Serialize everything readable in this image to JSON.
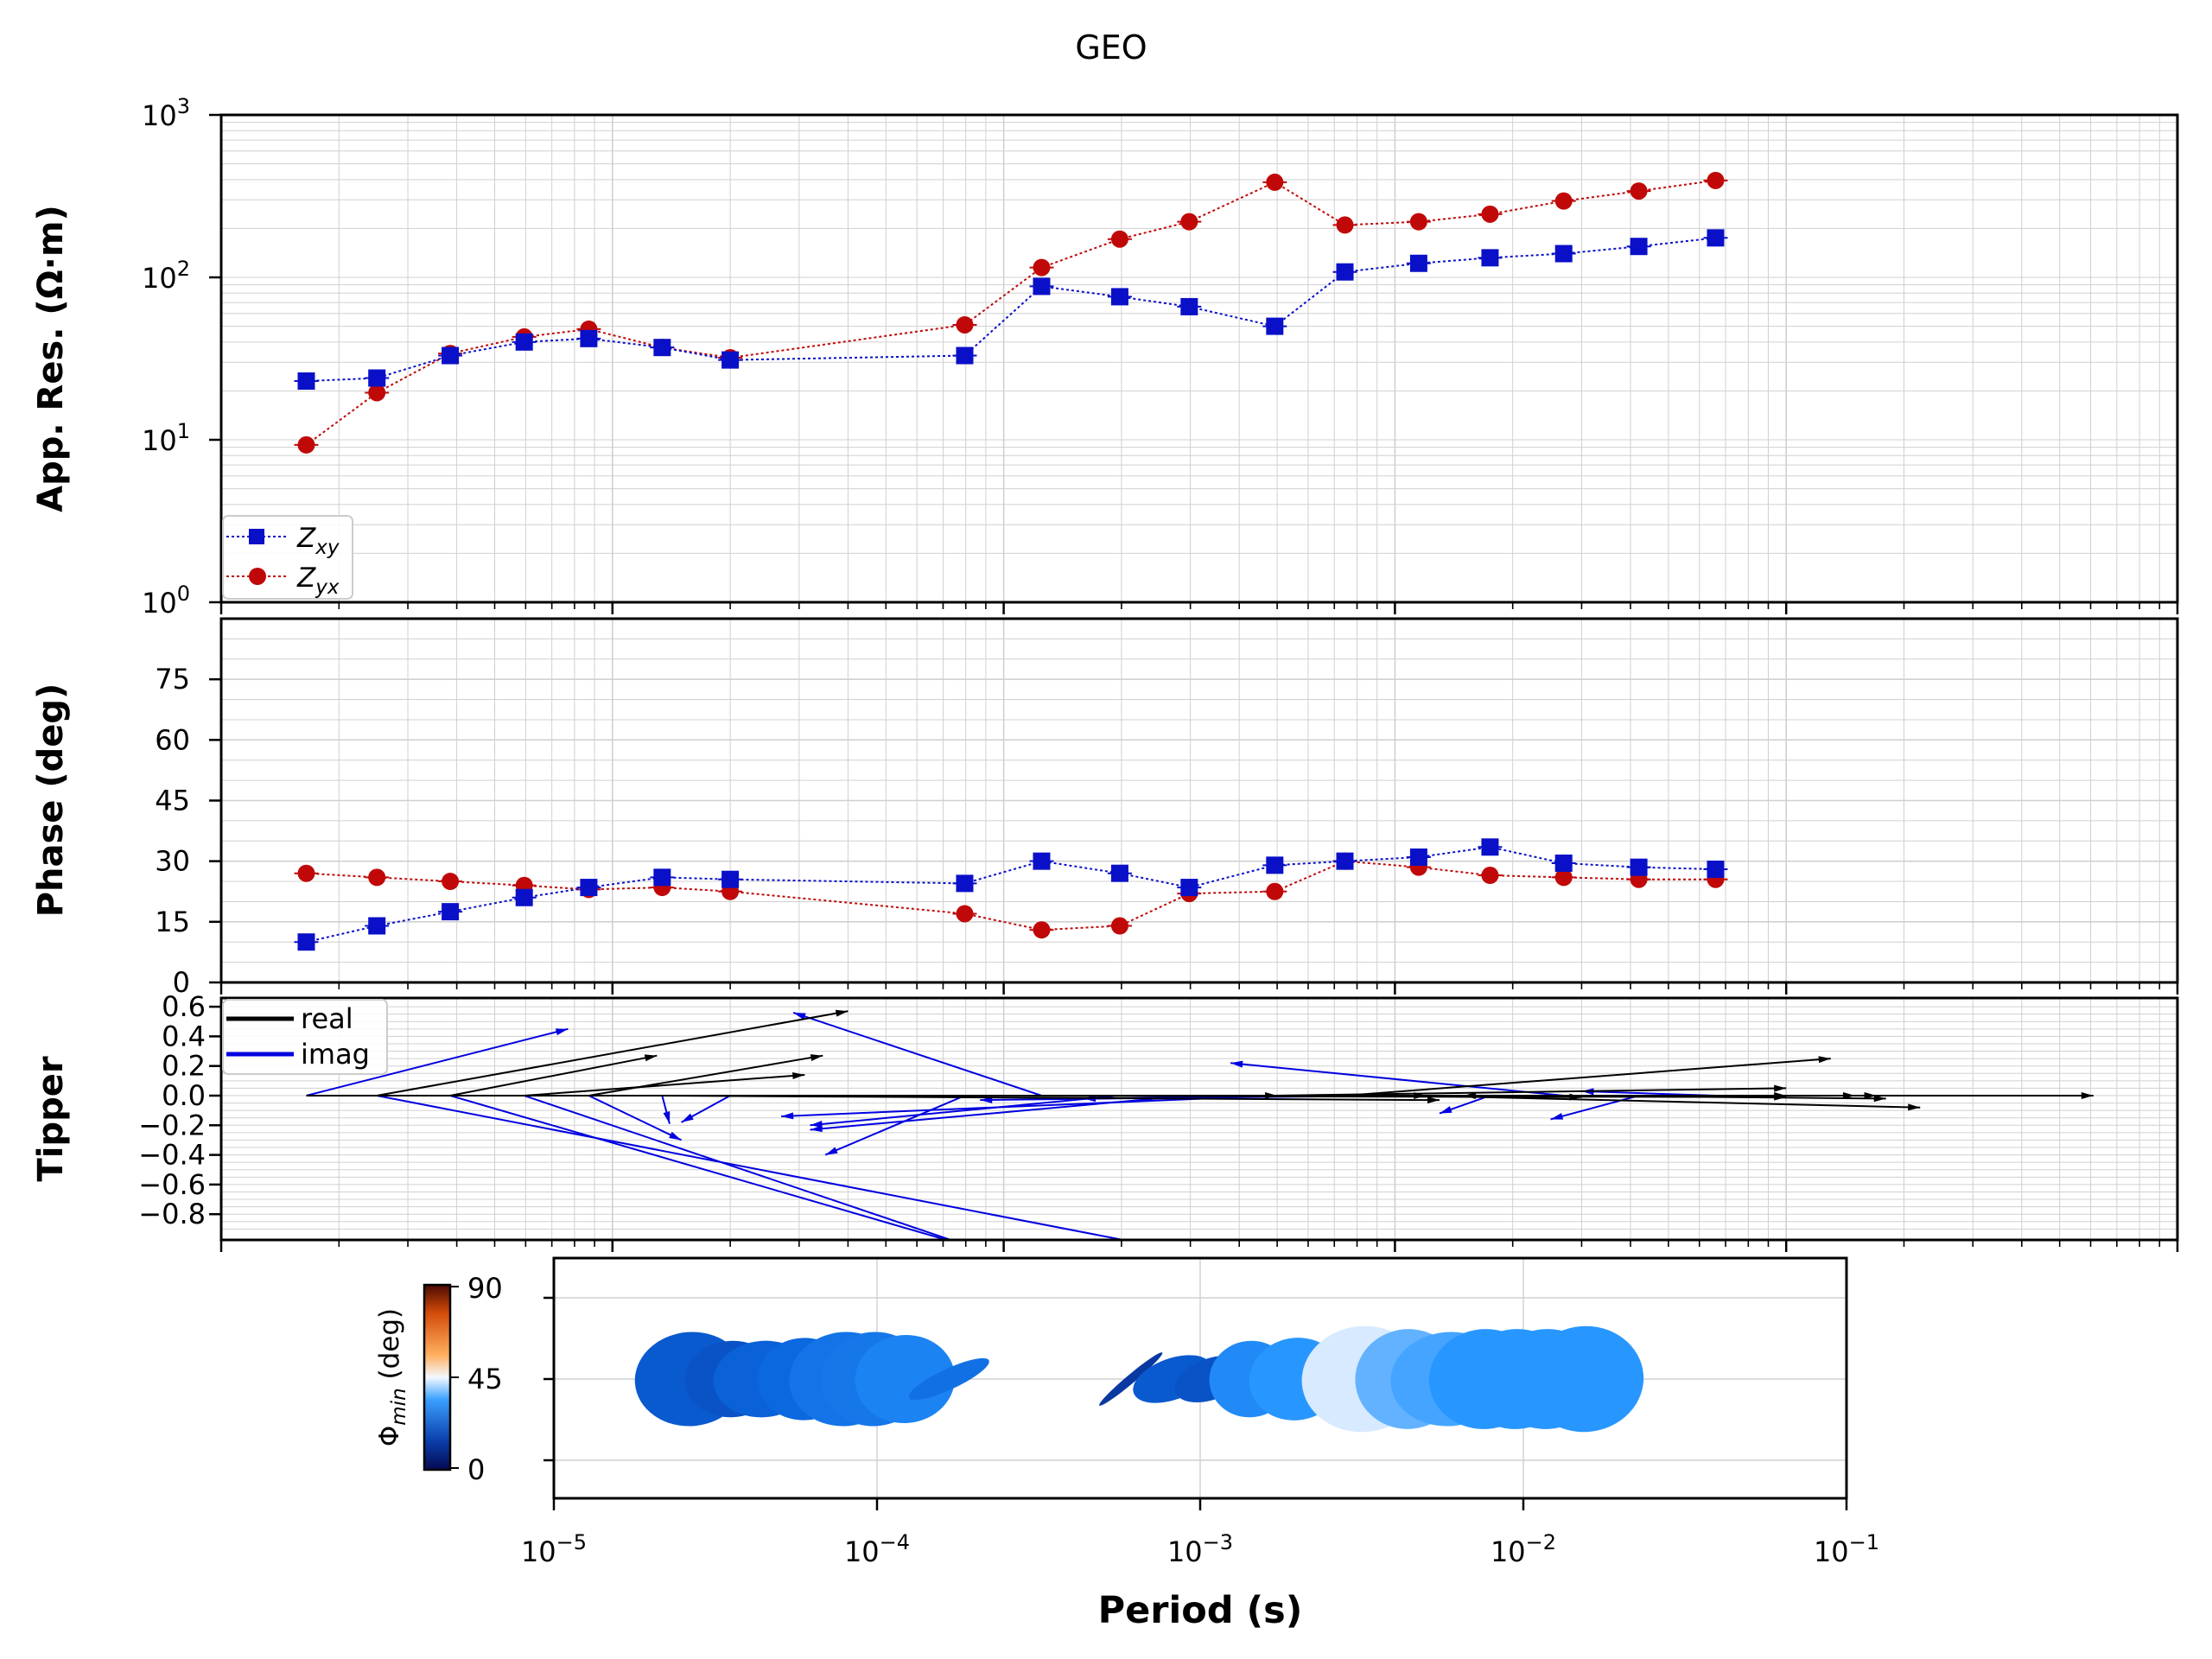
{
  "title": "GEO",
  "colors": {
    "xy": "#0a10c8",
    "yx": "#c00808",
    "real": "#000000",
    "imag": "#0000e0",
    "grid": "#d0d0d0"
  },
  "resistivity_axis": {
    "ylabel": "App. Res. (Ω·m)",
    "ticks": [
      {
        "base": "10",
        "exp": "0"
      },
      {
        "base": "10",
        "exp": "1"
      },
      {
        "base": "10",
        "exp": "2"
      },
      {
        "base": "10",
        "exp": "3"
      }
    ]
  },
  "phase_axis": {
    "ylabel": "Phase (deg)",
    "ticks": [
      "0",
      "15",
      "30",
      "45",
      "60",
      "75"
    ]
  },
  "tipper_axis": {
    "ylabel": "Tipper",
    "ticks": [
      "0.6",
      "0.4",
      "0.2",
      "0.0",
      "−0.2",
      "−0.4",
      "−0.6",
      "−0.8"
    ]
  },
  "period_axis": {
    "xlabel": "Period (s)",
    "ticks": [
      {
        "base": "10",
        "exp": "−5"
      },
      {
        "base": "10",
        "exp": "−4"
      },
      {
        "base": "10",
        "exp": "−3"
      },
      {
        "base": "10",
        "exp": "−2"
      },
      {
        "base": "10",
        "exp": "−1"
      }
    ]
  },
  "legends": {
    "resistivity": [
      {
        "label": "Z",
        "sub": "xy"
      },
      {
        "label": "Z",
        "sub": "yx"
      }
    ],
    "tipper": [
      "real",
      "imag"
    ]
  },
  "colorbar": {
    "label": "Φ",
    "sub": "min",
    "unit": " (deg)",
    "ticks": [
      "90",
      "45",
      "0"
    ]
  },
  "chart_data": [
    {
      "type": "scatter",
      "panel": "apparent resistivity",
      "yscale": "log",
      "xscale": "log",
      "xlim": [
        1e-05,
        1
      ],
      "ylim": [
        1,
        1000
      ],
      "x": [
        1.65e-05,
        2.5e-05,
        3.85e-05,
        5.95e-05,
        8.7e-05,
        0.000134,
        0.0002,
        0.000795,
        0.00125,
        0.00198,
        0.00298,
        0.00493,
        0.00745,
        0.0115,
        0.0175,
        0.027,
        0.042,
        0.066
      ],
      "series": [
        {
          "name": "Zxy",
          "values": [
            23,
            24,
            33,
            40,
            42,
            37,
            31,
            33,
            88,
            76,
            66,
            50,
            108,
            122,
            132,
            140,
            155,
            175
          ]
        },
        {
          "name": "Zyx",
          "values": [
            9.3,
            19.5,
            34,
            43,
            48,
            37,
            32,
            51,
            115,
            172,
            220,
            385,
            210,
            220,
            245,
            295,
            340,
            395
          ]
        }
      ]
    },
    {
      "type": "scatter",
      "panel": "phase",
      "xscale": "log",
      "xlim": [
        1e-05,
        1
      ],
      "ylim": [
        0,
        90
      ],
      "x": [
        1.65e-05,
        2.5e-05,
        3.85e-05,
        5.95e-05,
        8.7e-05,
        0.000134,
        0.0002,
        0.000795,
        0.00125,
        0.00198,
        0.00298,
        0.00493,
        0.00745,
        0.0115,
        0.0175,
        0.027,
        0.042,
        0.066
      ],
      "series": [
        {
          "name": "Zxy",
          "values": [
            10,
            14,
            17.5,
            21,
            23.5,
            26,
            25.5,
            24.5,
            30,
            27,
            23.5,
            29,
            30,
            31,
            33.5,
            29.5,
            28.5,
            28
          ]
        },
        {
          "name": "Zyx",
          "values": [
            27,
            26,
            25,
            24,
            23,
            23.5,
            22.5,
            17,
            13,
            14,
            22,
            22.5,
            30,
            28.5,
            26.5,
            26,
            25.5,
            25.5
          ]
        }
      ]
    },
    {
      "type": "line",
      "panel": "tipper induction arrows",
      "xscale": "log",
      "xlim": [
        1e-05,
        1
      ],
      "ylim": [
        -0.95,
        0.65
      ],
      "arrows_start_y": 0,
      "real": [
        {
          "x0": 1.65e-05,
          "x1": 0.012,
          "y1": 0.0
        },
        {
          "x0": 2.5e-05,
          "x1": 0.0004,
          "y1": 0.57
        },
        {
          "x0": 3.85e-05,
          "x1": 0.00013,
          "y1": 0.27
        },
        {
          "x0": 5.95e-05,
          "x1": 0.00031,
          "y1": 0.14
        },
        {
          "x0": 8.7e-05,
          "x1": 0.000345,
          "y1": 0.27
        },
        {
          "x0": 0.000134,
          "x1": 0.013,
          "y1": -0.03
        },
        {
          "x0": 0.0002,
          "x1": 0.005,
          "y1": 0.0
        },
        {
          "x0": 0.000795,
          "x1": 0.03,
          "y1": -0.01
        },
        {
          "x0": 0.00125,
          "x1": 0.1,
          "y1": -0.01
        },
        {
          "x0": 0.00198,
          "x1": 0.17,
          "y1": 0.0
        },
        {
          "x0": 0.00298,
          "x1": 0.1,
          "y1": 0.0
        },
        {
          "x0": 0.00493,
          "x1": 0.1,
          "y1": 0.05
        },
        {
          "x0": 0.00745,
          "x1": 0.13,
          "y1": 0.25
        },
        {
          "x0": 0.0115,
          "x1": 0.22,
          "y1": -0.08
        },
        {
          "x0": 0.0175,
          "x1": 0.15,
          "y1": 0.0
        },
        {
          "x0": 0.027,
          "x1": 0.18,
          "y1": -0.02
        },
        {
          "x0": 0.042,
          "x1": 0.61,
          "y1": 0.0
        },
        {
          "x0": 0.066,
          "x1": 0.015,
          "y1": 0.0
        }
      ],
      "imag": [
        {
          "x0": 1.65e-05,
          "x1": 7.7e-05,
          "y1": 0.45
        },
        {
          "x0": 2.5e-05,
          "x1": 0.0056,
          "y1": -1.2
        },
        {
          "x0": 3.85e-05,
          "x1": 0.0019,
          "y1": -1.3
        },
        {
          "x0": 5.95e-05,
          "x1": 0.0025,
          "y1": -1.45
        },
        {
          "x0": 8.7e-05,
          "x1": 0.00015,
          "y1": -0.3
        },
        {
          "x0": 0.000134,
          "x1": 0.00014,
          "y1": -0.19
        },
        {
          "x0": 0.0002,
          "x1": 0.00015,
          "y1": -0.18
        },
        {
          "x0": 0.000795,
          "x1": 0.00035,
          "y1": -0.4
        },
        {
          "x0": 0.00125,
          "x1": 0.00029,
          "y1": 0.56
        },
        {
          "x0": 0.00198,
          "x1": 0.00032,
          "y1": -0.2
        },
        {
          "x0": 0.00298,
          "x1": 0.00032,
          "y1": -0.23
        },
        {
          "x0": 0.00493,
          "x1": 0.00027,
          "y1": -0.14
        },
        {
          "x0": 0.00745,
          "x1": 0.00087,
          "y1": -0.03
        },
        {
          "x0": 0.0115,
          "x1": 0.0016,
          "y1": -0.02
        },
        {
          "x0": 0.0175,
          "x1": 0.013,
          "y1": -0.12
        },
        {
          "x0": 0.027,
          "x1": 0.0038,
          "y1": 0.22
        },
        {
          "x0": 0.042,
          "x1": 0.025,
          "y1": -0.16
        },
        {
          "x0": 0.066,
          "x1": 0.03,
          "y1": 0.03
        }
      ]
    },
    {
      "type": "scatter",
      "panel": "phase tensor ellipses",
      "xscale": "log",
      "xlim": [
        1e-05,
        0.1
      ],
      "ylim": [
        -18,
        18
      ],
      "colorbar_range": [
        0,
        90
      ],
      "ellipses": [
        {
          "period": 2.65e-05,
          "phimin": 22,
          "major": 1.9,
          "minor": 1.6,
          "angle": -5
        },
        {
          "period": 3.55e-05,
          "phimin": 20,
          "major": 1.6,
          "minor": 1.3,
          "angle": -3
        },
        {
          "period": 4.45e-05,
          "phimin": 24,
          "major": 1.7,
          "minor": 1.3,
          "angle": -5
        },
        {
          "period": 5.95e-05,
          "phimin": 26,
          "major": 1.6,
          "minor": 1.4,
          "angle": -3
        },
        {
          "period": 7.95e-05,
          "phimin": 29,
          "major": 1.9,
          "minor": 1.6,
          "angle": -5
        },
        {
          "period": 9.8e-05,
          "phimin": 30,
          "major": 1.8,
          "minor": 1.6,
          "angle": -5
        },
        {
          "period": 0.000122,
          "phimin": 33,
          "major": 1.7,
          "minor": 1.5,
          "angle": -5
        },
        {
          "period": 0.000167,
          "phimin": 28,
          "major": 1.5,
          "minor": 0.35,
          "angle": -25
        },
        {
          "period": 0.00061,
          "phimin": 12,
          "major": 1.4,
          "minor": 0.15,
          "angle": -40
        },
        {
          "period": 0.00082,
          "phimin": 22,
          "major": 1.4,
          "minor": 0.7,
          "angle": -20
        },
        {
          "period": 0.00108,
          "phimin": 20,
          "major": 1.3,
          "minor": 0.7,
          "angle": -20
        },
        {
          "period": 0.00143,
          "phimin": 35,
          "major": 1.4,
          "minor": 1.3,
          "angle": -10
        },
        {
          "period": 0.00198,
          "phimin": 38,
          "major": 1.6,
          "minor": 1.4,
          "angle": -10
        },
        {
          "period": 0.0032,
          "phimin": 44,
          "major": 2.1,
          "minor": 1.8,
          "angle": -5
        },
        {
          "period": 0.0044,
          "phimin": 40,
          "major": 1.8,
          "minor": 1.7,
          "angle": -5
        },
        {
          "period": 0.0059,
          "phimin": 39,
          "major": 2.0,
          "minor": 1.6,
          "angle": -5
        },
        {
          "period": 0.0076,
          "phimin": 38,
          "major": 1.9,
          "minor": 1.7,
          "angle": -5
        },
        {
          "period": 0.0095,
          "phimin": 38,
          "major": 1.9,
          "minor": 1.7,
          "angle": -5
        },
        {
          "period": 0.0118,
          "phimin": 38,
          "major": 1.9,
          "minor": 1.7,
          "angle": -5
        },
        {
          "period": 0.0155,
          "phimin": 38,
          "major": 2.0,
          "minor": 1.8,
          "angle": -5
        }
      ]
    }
  ]
}
